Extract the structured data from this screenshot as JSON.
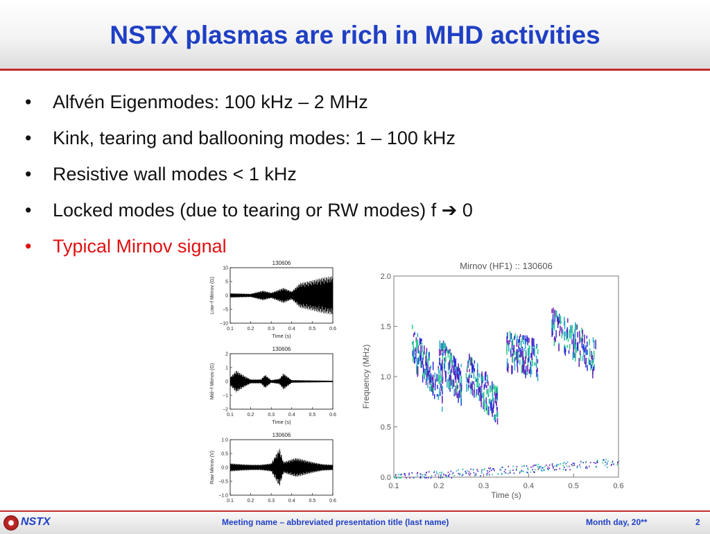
{
  "slide": {
    "title": "NSTX plasmas are rich in MHD activities",
    "bullets": [
      "Alfvén Eigenmodes: 100 kHz – 2 MHz",
      "Kink, tearing and ballooning modes: 1 – 100 kHz",
      "Resistive wall modes < 1 kHz",
      "Locked modes (due to tearing or RW modes) f ➔ 0",
      "Typical Mirnov signal"
    ],
    "highlight_color": "#e01010"
  },
  "footer": {
    "logo_text": "NSTX",
    "center": "Meeting name  – abbreviated presentation title (last name)",
    "date": "Month day, 20**",
    "page": "2"
  },
  "chart_data": [
    {
      "type": "line",
      "title": "130606",
      "xlabel": "Time (s)",
      "ylabel": "Low−f Mirnov (G)",
      "xlim": [
        0.1,
        0.6
      ],
      "ylim": [
        -10,
        10
      ],
      "x_ticks": [
        "0.1",
        "0.2",
        "0.3",
        "0.4",
        "0.5",
        "0.6"
      ],
      "y_ticks": [
        "10",
        "5",
        "0",
        "−5",
        "−10"
      ],
      "envelope": {
        "t": [
          0.1,
          0.2,
          0.26,
          0.3,
          0.36,
          0.4,
          0.44,
          0.5,
          0.55,
          0.6
        ],
        "amp": [
          0.8,
          0.6,
          1.8,
          1.0,
          2.8,
          1.5,
          4.5,
          5.5,
          6.5,
          7.0
        ]
      }
    },
    {
      "type": "line",
      "title": "130606",
      "xlabel": "Time (s)",
      "ylabel": "Mid−f Mirnov (G)",
      "xlim": [
        0.1,
        0.6
      ],
      "ylim": [
        -2,
        2
      ],
      "x_ticks": [
        "0.1",
        "0.2",
        "0.3",
        "0.4",
        "0.5",
        "0.6"
      ],
      "y_ticks": [
        "2",
        "1",
        "0",
        "−1",
        "−2"
      ],
      "envelope": {
        "t": [
          0.1,
          0.13,
          0.17,
          0.2,
          0.25,
          0.27,
          0.3,
          0.34,
          0.36,
          0.4,
          0.6
        ],
        "amp": [
          0.3,
          0.8,
          0.4,
          0.15,
          0.15,
          0.5,
          0.1,
          0.2,
          0.6,
          0.1,
          0.05
        ]
      }
    },
    {
      "type": "line",
      "title": "130606",
      "xlabel": "Time (s)",
      "ylabel": "Raw Mirnov (V)",
      "xlim": [
        0.1,
        0.6
      ],
      "ylim": [
        -1.0,
        1.0
      ],
      "x_ticks": [
        "0.1",
        "0.2",
        "0.3",
        "0.4",
        "0.5",
        "0.6"
      ],
      "y_ticks": [
        "1.0",
        "0.5",
        "0.0",
        "−0.5",
        "−1.0"
      ],
      "envelope": {
        "t": [
          0.1,
          0.15,
          0.2,
          0.25,
          0.3,
          0.34,
          0.36,
          0.42,
          0.45,
          0.5,
          0.55,
          0.6
        ],
        "amp": [
          0.15,
          0.12,
          0.1,
          0.1,
          0.15,
          0.7,
          0.2,
          0.35,
          0.3,
          0.2,
          0.12,
          0.1
        ]
      }
    },
    {
      "type": "heatmap",
      "title": "Mirnov (HF1) :: 130606",
      "xlabel": "Time (s)",
      "ylabel": "Frequency (MHz)",
      "xlim": [
        0.1,
        0.6
      ],
      "ylim": [
        0.0,
        2.0
      ],
      "x_ticks": [
        "0.1",
        "0.2",
        "0.3",
        "0.4",
        "0.5",
        "0.6"
      ],
      "y_ticks": [
        "2.0",
        "1.5",
        "1.0",
        "0.5",
        "0.0"
      ],
      "features": [
        {
          "t": [
            0.14,
            0.21
          ],
          "f": [
            1.35,
            0.85
          ]
        },
        {
          "t": [
            0.2,
            0.25
          ],
          "f": [
            1.25,
            0.95
          ]
        },
        {
          "t": [
            0.26,
            0.33
          ],
          "f": [
            1.1,
            0.75
          ]
        },
        {
          "t": [
            0.35,
            0.42
          ],
          "f": [
            1.3,
            1.2
          ]
        },
        {
          "t": [
            0.45,
            0.55
          ],
          "f": [
            1.55,
            1.2
          ]
        },
        {
          "t": [
            0.1,
            0.6
          ],
          "f": [
            0.0,
            0.15
          ]
        }
      ],
      "colors": [
        "#2b2bd6",
        "#2aa7c9",
        "#29c98a",
        "#6a1fb0"
      ]
    }
  ]
}
